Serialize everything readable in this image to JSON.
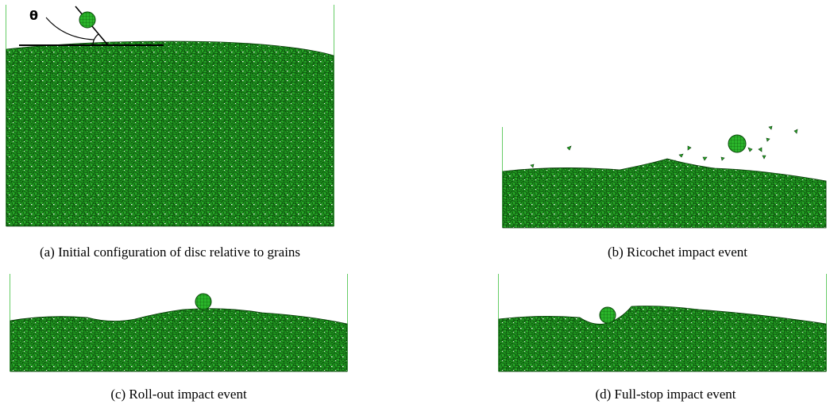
{
  "angle_label": "θ",
  "panels": [
    {
      "caption": "(a) Initial configuration of disc relative to grains"
    },
    {
      "caption": "(b) Ricochet impact event"
    },
    {
      "caption": "(c) Roll-out impact event"
    },
    {
      "caption": "(d) Full-stop impact event"
    }
  ]
}
